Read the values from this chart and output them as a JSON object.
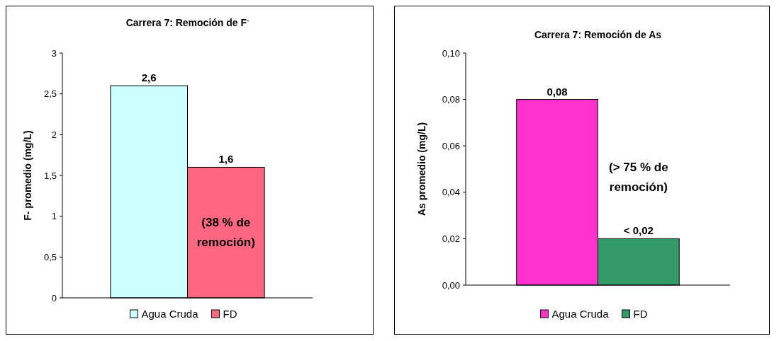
{
  "chart_data": [
    {
      "type": "bar",
      "title": "Carrera 7: Remoción de F$^{-}$",
      "ylabel": "F- promedio (mg/L)",
      "categories": [
        null
      ],
      "series": [
        {
          "name": "Agua Cruda",
          "color": "#ccffff",
          "values": [
            2.6
          ],
          "value_labels": [
            "2,6"
          ]
        },
        {
          "name": "FD",
          "color": "#ff6680",
          "values": [
            1.6
          ],
          "value_labels": [
            "1,6"
          ]
        }
      ],
      "ylim": [
        0,
        3
      ],
      "yticks": [
        0,
        {
          "value": 0.5,
          "label": "0,5"
        },
        1,
        {
          "value": 1.5,
          "label": "1,5"
        },
        2,
        {
          "value": 2.5,
          "label": "2,5"
        },
        3
      ],
      "annotations": [
        "(38 % de remoción)"
      ],
      "legend": "bottom",
      "grid": false
    },
    {
      "type": "bar",
      "title": "Carrera 7: Remoción de As",
      "ylabel": "As promedio (mg/L)",
      "categories": [
        null
      ],
      "series": [
        {
          "name": "Agua Cruda",
          "color": "#ff33cc",
          "values": [
            0.08
          ],
          "value_labels": [
            "0,08"
          ]
        },
        {
          "name": "FD",
          "color": "#339966",
          "values": [
            0.02
          ],
          "value_labels": [
            "< 0,02"
          ]
        }
      ],
      "ylim": [
        0,
        0.1
      ],
      "yticks": [
        {
          "value": 0,
          "label": "0,00"
        },
        {
          "value": 0.02,
          "label": "0,02"
        },
        {
          "value": 0.04,
          "label": "0,04"
        },
        {
          "value": 0.06,
          "label": "0,06"
        },
        {
          "value": 0.08,
          "label": "0,08"
        },
        {
          "value": 0.1,
          "label": "0,10"
        }
      ],
      "annotations": [
        "(> 75 % de remoción)"
      ],
      "legend": "bottom",
      "grid": false
    }
  ]
}
